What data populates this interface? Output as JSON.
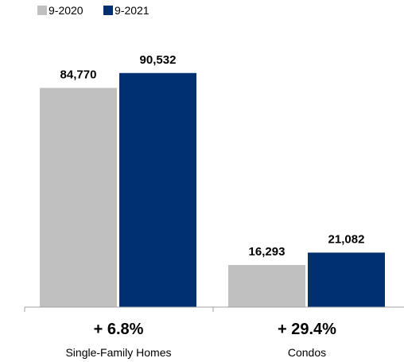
{
  "chart_data": {
    "type": "bar",
    "categories": [
      "Single-Family Homes",
      "Condos"
    ],
    "changes": [
      "+ 6.8%",
      "+ 29.4%"
    ],
    "series": [
      {
        "name": "9-2020",
        "color": "#c0c0c0",
        "values": [
          84770,
          16293
        ],
        "labels": [
          "84,770",
          "16,293"
        ]
      },
      {
        "name": "9-2021",
        "color": "#003070",
        "values": [
          90532,
          21082
        ],
        "labels": [
          "90,532",
          "21,082"
        ]
      }
    ],
    "title": "",
    "xlabel": "",
    "ylabel": "",
    "ylim": [
      0,
      100000
    ],
    "grid": false,
    "legend": "top-left"
  }
}
